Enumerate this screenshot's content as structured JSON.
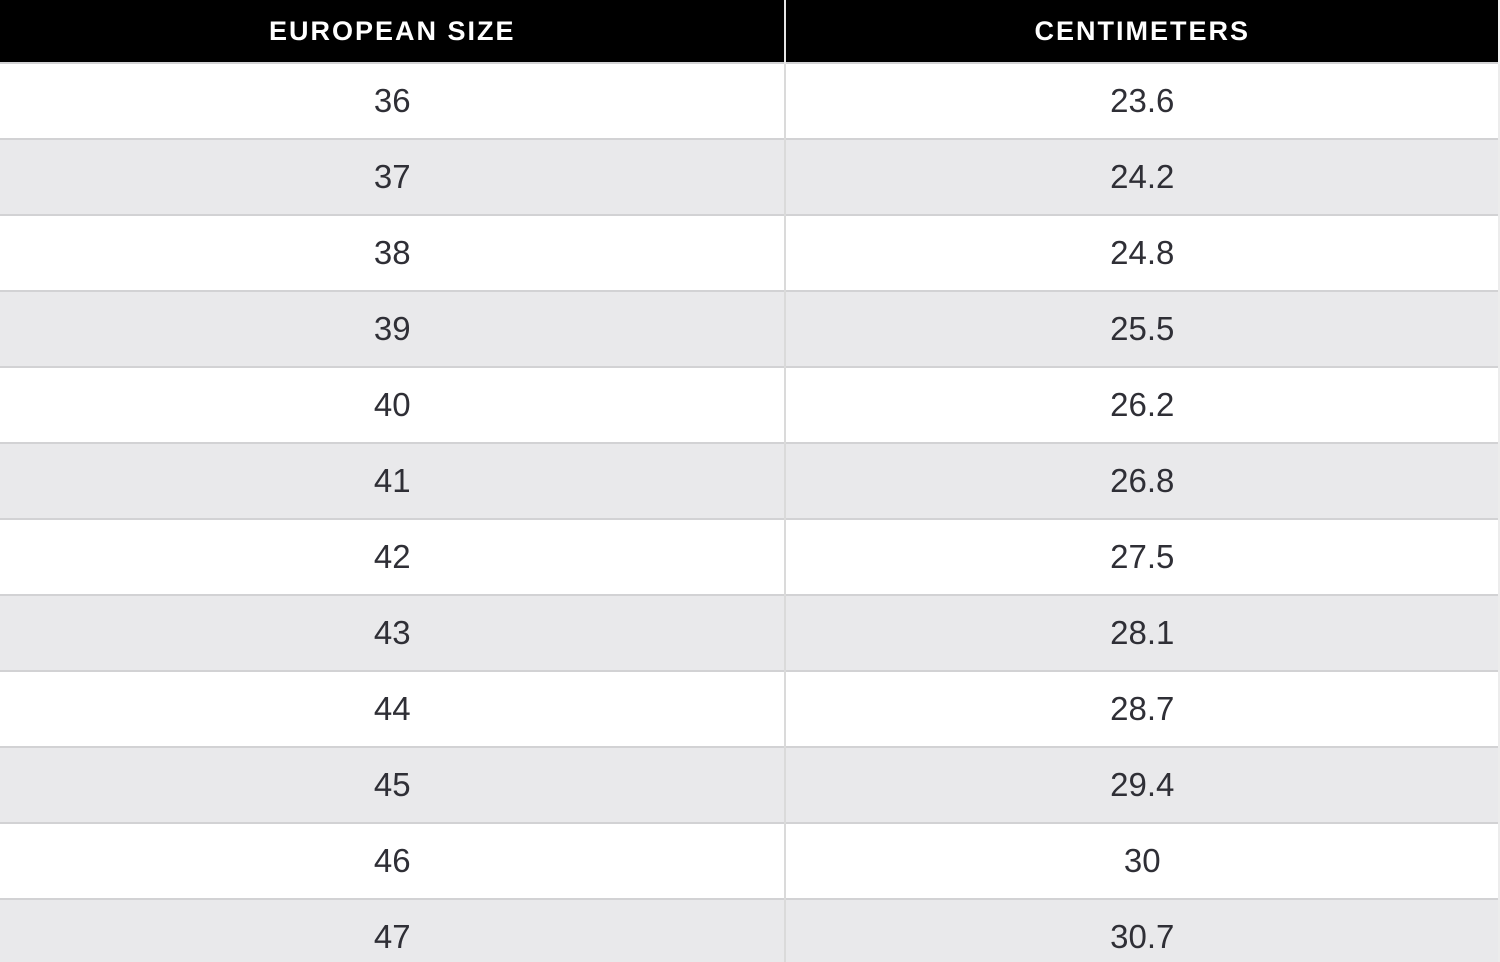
{
  "table": {
    "columns": [
      "EUROPEAN SIZE",
      "CENTIMETERS"
    ],
    "rows": [
      [
        "36",
        "23.6"
      ],
      [
        "37",
        "24.2"
      ],
      [
        "38",
        "24.8"
      ],
      [
        "39",
        "25.5"
      ],
      [
        "40",
        "26.2"
      ],
      [
        "41",
        "26.8"
      ],
      [
        "42",
        "27.5"
      ],
      [
        "43",
        "28.1"
      ],
      [
        "44",
        "28.7"
      ],
      [
        "45",
        "29.4"
      ],
      [
        "46",
        "30"
      ],
      [
        "47",
        "30.7"
      ]
    ]
  },
  "chart_data": {
    "type": "table",
    "columns": [
      "EUROPEAN SIZE",
      "CENTIMETERS"
    ],
    "rows": [
      [
        36,
        23.6
      ],
      [
        37,
        24.2
      ],
      [
        38,
        24.8
      ],
      [
        39,
        25.5
      ],
      [
        40,
        26.2
      ],
      [
        41,
        26.8
      ],
      [
        42,
        27.5
      ],
      [
        43,
        28.1
      ],
      [
        44,
        28.7
      ],
      [
        45,
        29.4
      ],
      [
        46,
        30
      ],
      [
        47,
        30.7
      ]
    ]
  },
  "colors": {
    "header_background": "#000000",
    "header_text": "#ffffff",
    "row_background": "#ffffff",
    "row_alt_background": "#e9e9eb",
    "border": "#d2d2d4",
    "cell_text": "#2f2f36"
  }
}
